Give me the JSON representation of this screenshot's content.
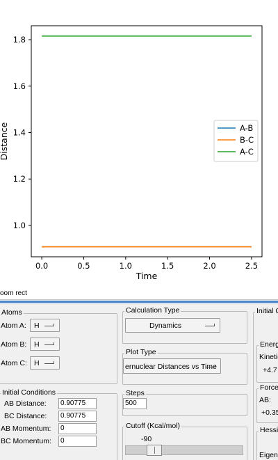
{
  "chart_data": {
    "type": "line",
    "xlabel": "Time",
    "ylabel": "Distance",
    "xlim": [
      -0.125,
      2.625
    ],
    "ylim": [
      0.865,
      1.86
    ],
    "xticks": [
      0.0,
      0.5,
      1.0,
      1.5,
      2.0,
      2.5
    ],
    "xtick_labels": [
      "0.0",
      "0.5",
      "1.0",
      "1.5",
      "2.0",
      "2.5"
    ],
    "yticks": [
      1.0,
      1.2,
      1.4,
      1.6,
      1.8
    ],
    "ytick_labels": [
      "1.0",
      "1.2",
      "1.4",
      "1.6",
      "1.8"
    ],
    "legend_position": "center-right",
    "series": [
      {
        "name": "A-B",
        "color": "#1f77b4",
        "x": [
          0.0,
          2.5
        ],
        "y": [
          0.90775,
          0.90775
        ]
      },
      {
        "name": "B-C",
        "color": "#ff7f0e",
        "x": [
          0.0,
          2.5
        ],
        "y": [
          0.90775,
          0.90775
        ]
      },
      {
        "name": "A-C",
        "color": "#2ca02c",
        "x": [
          0.0,
          2.5
        ],
        "y": [
          1.8155,
          1.8155
        ]
      }
    ]
  },
  "window": {
    "title": "oom rect"
  },
  "atoms": {
    "group_label": "Atoms",
    "atom_a_label": "Atom A:",
    "atom_a_value": "H",
    "atom_b_label": "Atom B:",
    "atom_b_value": "H",
    "atom_c_label": "Atom C:",
    "atom_c_value": "H"
  },
  "calc": {
    "group_label": "Calculation Type",
    "value": "Dynamics"
  },
  "plot_type": {
    "group_label": "Plot Type",
    "value": "ernuclear Distances vs Time"
  },
  "initial_conditions": {
    "group_label": "Initial Conditions",
    "ab_distance_label": "AB Distance:",
    "ab_distance_value": "0.90775",
    "bc_distance_label": "BC Distance:",
    "bc_distance_value": "0.90775",
    "ab_momentum_label": "AB Momentum:",
    "ab_momentum_value": "0",
    "bc_momentum_label": "BC Momentum:",
    "bc_momentum_value": "0"
  },
  "steps": {
    "group_label": "Steps",
    "value": "500"
  },
  "cutoff": {
    "group_label": "Cutoff (Kcal/mol)",
    "value": "-90",
    "level": 0.2
  },
  "right_panel": {
    "initial_label": "Initial C",
    "energy_label": "Energ",
    "kinetic_label": "Kinetic",
    "kinetic_value": "+4.7",
    "forces_label": "Force",
    "ab_label": "AB:",
    "ab_value": "+0.35",
    "hessian_label": "Hessi",
    "eigen_label": "Eigenv"
  }
}
